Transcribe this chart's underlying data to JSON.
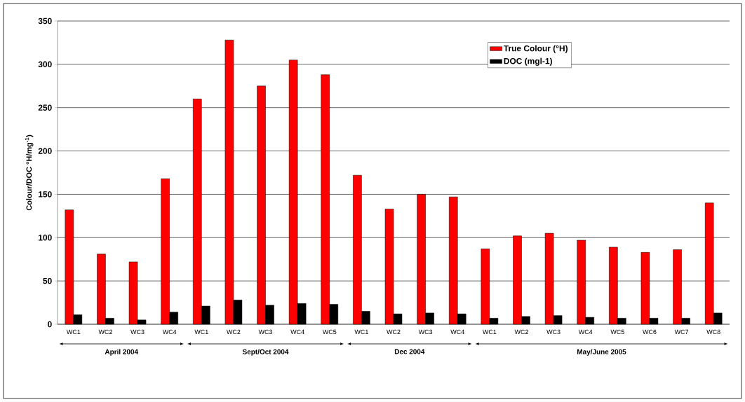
{
  "chart_data": {
    "type": "bar",
    "ylabel": "Colour/DOC °H/mg$^{-1}$)",
    "categories": [
      "WC1",
      "WC2",
      "WC3",
      "WC4",
      "WC1",
      "WC2",
      "WC3",
      "WC4",
      "WC5",
      "WC1",
      "WC2",
      "WC3",
      "WC4",
      "WC1",
      "WC2",
      "WC3",
      "WC4",
      "WC5",
      "WC6",
      "WC7",
      "WC8"
    ],
    "series": [
      {
        "name": "True Colour (°H)",
        "color": "#ff0000",
        "values": [
          132,
          81,
          72,
          168,
          260,
          328,
          275,
          305,
          288,
          172,
          133,
          150,
          147,
          87,
          102,
          105,
          97,
          89,
          83,
          86,
          140
        ]
      },
      {
        "name": "DOC (mgl-1)",
        "color": "#000000",
        "values": [
          11,
          7,
          5,
          14,
          21,
          28,
          22,
          24,
          23,
          15,
          12,
          13,
          12,
          7,
          9,
          10,
          8,
          7,
          7,
          7,
          13
        ]
      }
    ],
    "annotations": [
      "April 2004",
      "Sept/Oct 2004",
      "Dec 2004",
      "May/June 2005"
    ],
    "ylim": [
      0,
      350
    ],
    "yticks": [
      0,
      50,
      100,
      150,
      200,
      250,
      300,
      350
    ],
    "grid": "y",
    "legend": "top right"
  }
}
